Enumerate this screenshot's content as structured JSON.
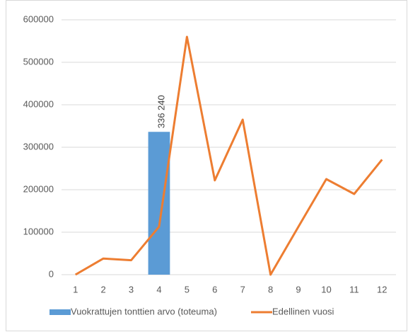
{
  "chart_data": {
    "type": "bar",
    "categories": [
      "1",
      "2",
      "3",
      "4",
      "5",
      "6",
      "7",
      "8",
      "9",
      "10",
      "11",
      "12"
    ],
    "series": [
      {
        "name": "Vuokrattujen tonttien arvo (toteuma)",
        "type": "bar",
        "color": "#5b9bd5",
        "values": [
          null,
          null,
          null,
          336240,
          null,
          null,
          null,
          null,
          null,
          null,
          null,
          null
        ],
        "value_labels": [
          null,
          null,
          null,
          "336 240",
          null,
          null,
          null,
          null,
          null,
          null,
          null,
          null
        ]
      },
      {
        "name": "Edellinen vuosi",
        "type": "line",
        "color": "#ed7d31",
        "values": [
          0,
          38000,
          34000,
          113000,
          560000,
          222000,
          365000,
          0,
          113000,
          225000,
          190000,
          271000
        ]
      }
    ],
    "ylim": [
      0,
      600000
    ],
    "yticks": [
      0,
      100000,
      200000,
      300000,
      400000,
      500000,
      600000
    ],
    "grid": true,
    "legend": "bottom"
  }
}
